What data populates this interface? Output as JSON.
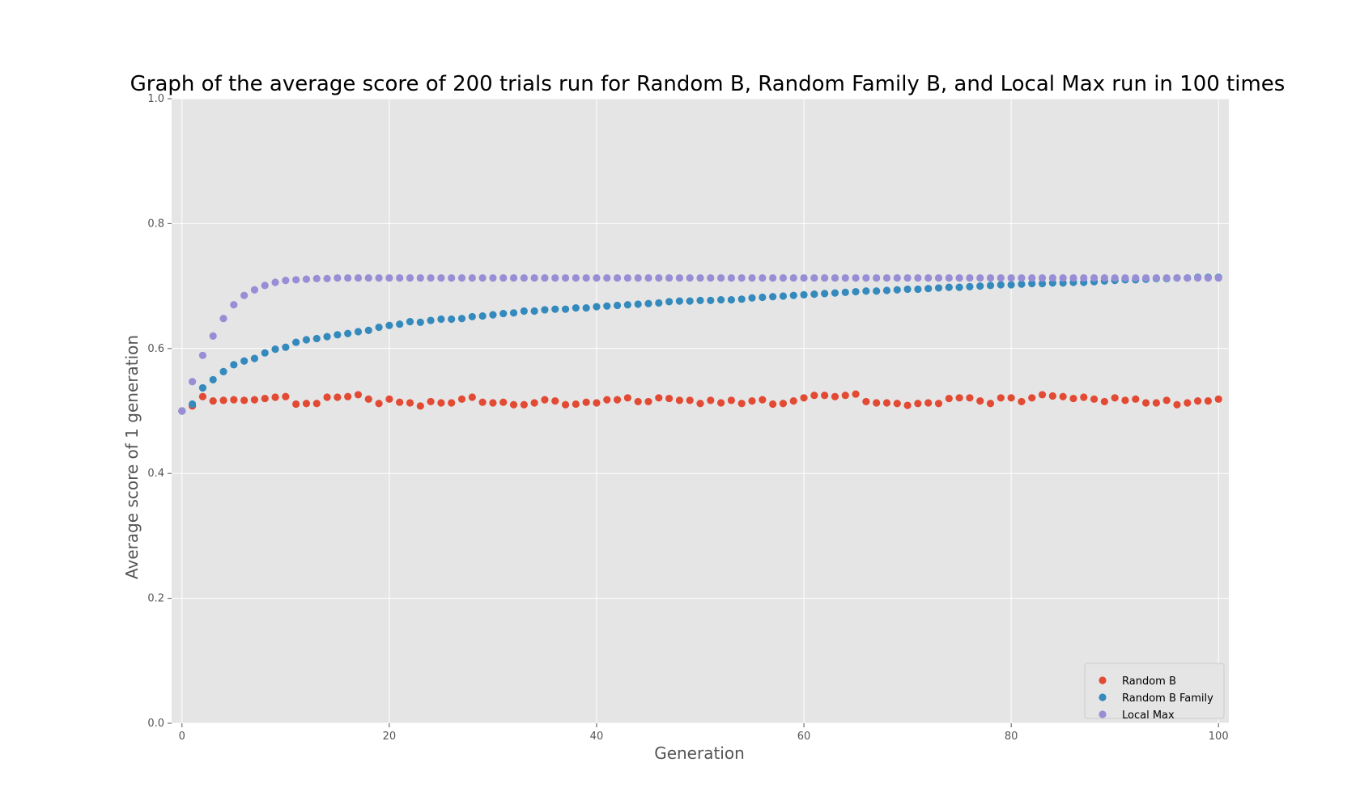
{
  "chart_data": {
    "type": "scatter",
    "title": "Graph of the average score of 200 trials run for Random B, Random Family B, and Local Max run in 100 times",
    "xlabel": "Generation",
    "ylabel": "Average score of 1 generation",
    "xlim": [
      -1,
      101
    ],
    "ylim": [
      0.0,
      1.0
    ],
    "xticks": [
      "0",
      "20",
      "40",
      "60",
      "80",
      "100"
    ],
    "yticks": [
      "0.0",
      "0.2",
      "0.4",
      "0.6",
      "0.8",
      "1.0"
    ],
    "grid": true,
    "legend_position": "bottom-right",
    "series": [
      {
        "name": "Random B",
        "color": "#E24A33",
        "x": [
          0,
          1,
          2,
          3,
          4,
          5,
          6,
          7,
          8,
          9,
          10,
          11,
          12,
          13,
          14,
          15,
          16,
          17,
          18,
          19,
          20,
          21,
          22,
          23,
          24,
          25,
          26,
          27,
          28,
          29,
          30,
          31,
          32,
          33,
          34,
          35,
          36,
          37,
          38,
          39,
          40,
          41,
          42,
          43,
          44,
          45,
          46,
          47,
          48,
          49,
          50,
          51,
          52,
          53,
          54,
          55,
          56,
          57,
          58,
          59,
          60,
          61,
          62,
          63,
          64,
          65,
          66,
          67,
          68,
          69,
          70,
          71,
          72,
          73,
          74,
          75,
          76,
          77,
          78,
          79,
          80,
          81,
          82,
          83,
          84,
          85,
          86,
          87,
          88,
          89,
          90,
          91,
          92,
          93,
          94,
          95,
          96,
          97,
          98,
          99,
          100
        ],
        "values": [
          0.5,
          0.508,
          0.523,
          0.516,
          0.517,
          0.518,
          0.517,
          0.518,
          0.52,
          0.522,
          0.523,
          0.511,
          0.512,
          0.512,
          0.522,
          0.522,
          0.523,
          0.526,
          0.519,
          0.512,
          0.519,
          0.514,
          0.513,
          0.508,
          0.515,
          0.513,
          0.513,
          0.519,
          0.522,
          0.514,
          0.513,
          0.514,
          0.51,
          0.51,
          0.513,
          0.518,
          0.516,
          0.51,
          0.511,
          0.514,
          0.513,
          0.518,
          0.518,
          0.521,
          0.515,
          0.515,
          0.521,
          0.52,
          0.517,
          0.517,
          0.512,
          0.517,
          0.513,
          0.517,
          0.512,
          0.516,
          0.518,
          0.511,
          0.512,
          0.516,
          0.521,
          0.525,
          0.525,
          0.523,
          0.525,
          0.527,
          0.515,
          0.513,
          0.513,
          0.512,
          0.509,
          0.512,
          0.513,
          0.512,
          0.52,
          0.521,
          0.521,
          0.516,
          0.512,
          0.521,
          0.521,
          0.515,
          0.521,
          0.526,
          0.524,
          0.523,
          0.52,
          0.522,
          0.519,
          0.515,
          0.521,
          0.517,
          0.519,
          0.513,
          0.513,
          0.517,
          0.51,
          0.513,
          0.516,
          0.516,
          0.519
        ]
      },
      {
        "name": "Random B Family",
        "color": "#348ABD",
        "x": [
          0,
          1,
          2,
          3,
          4,
          5,
          6,
          7,
          8,
          9,
          10,
          11,
          12,
          13,
          14,
          15,
          16,
          17,
          18,
          19,
          20,
          21,
          22,
          23,
          24,
          25,
          26,
          27,
          28,
          29,
          30,
          31,
          32,
          33,
          34,
          35,
          36,
          37,
          38,
          39,
          40,
          41,
          42,
          43,
          44,
          45,
          46,
          47,
          48,
          49,
          50,
          51,
          52,
          53,
          54,
          55,
          56,
          57,
          58,
          59,
          60,
          61,
          62,
          63,
          64,
          65,
          66,
          67,
          68,
          69,
          70,
          71,
          72,
          73,
          74,
          75,
          76,
          77,
          78,
          79,
          80,
          81,
          82,
          83,
          84,
          85,
          86,
          87,
          88,
          89,
          90,
          91,
          92,
          93,
          94,
          95,
          96,
          97,
          98,
          99,
          100
        ],
        "values": [
          0.5,
          0.511,
          0.537,
          0.55,
          0.563,
          0.574,
          0.58,
          0.584,
          0.593,
          0.599,
          0.602,
          0.61,
          0.614,
          0.616,
          0.619,
          0.622,
          0.624,
          0.627,
          0.629,
          0.634,
          0.637,
          0.639,
          0.643,
          0.642,
          0.645,
          0.647,
          0.647,
          0.648,
          0.651,
          0.652,
          0.654,
          0.656,
          0.657,
          0.66,
          0.66,
          0.662,
          0.663,
          0.663,
          0.665,
          0.665,
          0.667,
          0.668,
          0.669,
          0.67,
          0.671,
          0.672,
          0.673,
          0.675,
          0.676,
          0.676,
          0.677,
          0.677,
          0.678,
          0.678,
          0.679,
          0.681,
          0.682,
          0.683,
          0.684,
          0.685,
          0.686,
          0.687,
          0.688,
          0.689,
          0.69,
          0.691,
          0.692,
          0.692,
          0.693,
          0.694,
          0.695,
          0.695,
          0.696,
          0.697,
          0.698,
          0.698,
          0.699,
          0.7,
          0.701,
          0.702,
          0.702,
          0.703,
          0.704,
          0.704,
          0.705,
          0.705,
          0.706,
          0.706,
          0.707,
          0.708,
          0.709,
          0.71,
          0.71,
          0.711,
          0.712,
          0.712,
          0.713,
          0.713,
          0.714,
          0.714,
          0.714
        ]
      },
      {
        "name": "Local Max",
        "color": "#988ED5",
        "x": [
          0,
          1,
          2,
          3,
          4,
          5,
          6,
          7,
          8,
          9,
          10,
          11,
          12,
          13,
          14,
          15,
          16,
          17,
          18,
          19,
          20,
          21,
          22,
          23,
          24,
          25,
          26,
          27,
          28,
          29,
          30,
          31,
          32,
          33,
          34,
          35,
          36,
          37,
          38,
          39,
          40,
          41,
          42,
          43,
          44,
          45,
          46,
          47,
          48,
          49,
          50,
          51,
          52,
          53,
          54,
          55,
          56,
          57,
          58,
          59,
          60,
          61,
          62,
          63,
          64,
          65,
          66,
          67,
          68,
          69,
          70,
          71,
          72,
          73,
          74,
          75,
          76,
          77,
          78,
          79,
          80,
          81,
          82,
          83,
          84,
          85,
          86,
          87,
          88,
          89,
          90,
          91,
          92,
          93,
          94,
          95,
          96,
          97,
          98,
          99,
          100
        ],
        "values": [
          0.5,
          0.547,
          0.589,
          0.62,
          0.648,
          0.67,
          0.685,
          0.694,
          0.701,
          0.706,
          0.709,
          0.71,
          0.711,
          0.712,
          0.712,
          0.713,
          0.713,
          0.713,
          0.713,
          0.713,
          0.713,
          0.713,
          0.713,
          0.713,
          0.713,
          0.713,
          0.713,
          0.713,
          0.713,
          0.713,
          0.713,
          0.713,
          0.713,
          0.713,
          0.713,
          0.713,
          0.713,
          0.713,
          0.713,
          0.713,
          0.713,
          0.713,
          0.713,
          0.713,
          0.713,
          0.713,
          0.713,
          0.713,
          0.713,
          0.713,
          0.713,
          0.713,
          0.713,
          0.713,
          0.713,
          0.713,
          0.713,
          0.713,
          0.713,
          0.713,
          0.713,
          0.713,
          0.713,
          0.713,
          0.713,
          0.713,
          0.713,
          0.713,
          0.713,
          0.713,
          0.713,
          0.713,
          0.713,
          0.713,
          0.713,
          0.713,
          0.713,
          0.713,
          0.713,
          0.713,
          0.713,
          0.713,
          0.713,
          0.713,
          0.713,
          0.713,
          0.713,
          0.713,
          0.713,
          0.713,
          0.713,
          0.713,
          0.713,
          0.713,
          0.713,
          0.713,
          0.713,
          0.713,
          0.713,
          0.713,
          0.713
        ]
      }
    ]
  }
}
